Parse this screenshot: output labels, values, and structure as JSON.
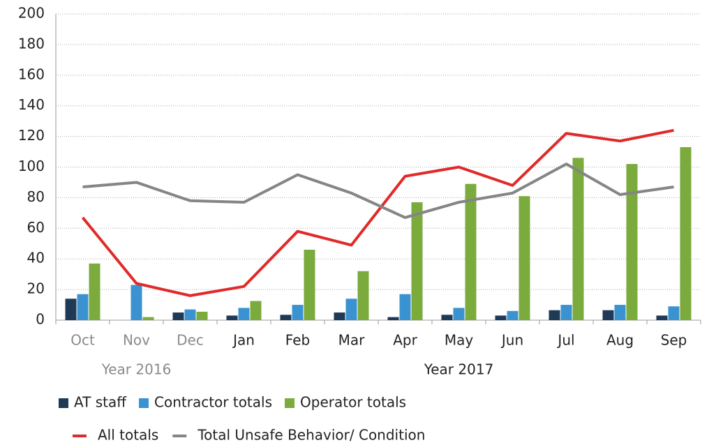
{
  "chart_data": {
    "type": "bar",
    "categories": [
      "Oct",
      "Nov",
      "Dec",
      "Jan",
      "Feb",
      "Mar",
      "Apr",
      "May",
      "Jun",
      "Jul",
      "Aug",
      "Sep"
    ],
    "category_colors": [
      "#8a8a8a",
      "#8a8a8a",
      "#8a8a8a",
      "#222222",
      "#222222",
      "#222222",
      "#222222",
      "#222222",
      "#222222",
      "#222222",
      "#222222",
      "#222222"
    ],
    "groups": [
      {
        "label": "Year 2016",
        "start": 0,
        "end": 2,
        "color": "#8a8a8a"
      },
      {
        "label": "Year 2017",
        "start": 3,
        "end": 11,
        "color": "#222222"
      }
    ],
    "series": [
      {
        "name": "AT staff",
        "type": "bar",
        "color": "#1f3a56",
        "values": [
          14,
          0,
          5,
          3,
          3.5,
          5,
          2,
          3.5,
          3,
          6.5,
          6.5,
          3
        ]
      },
      {
        "name": "Contractor totals",
        "type": "bar",
        "color": "#3a93d0",
        "values": [
          17,
          23,
          7,
          8,
          10,
          14,
          17,
          8,
          6,
          10,
          10,
          9
        ]
      },
      {
        "name": "Operator totals",
        "type": "bar",
        "color": "#7aab3c",
        "values": [
          37,
          2,
          5.5,
          12.5,
          46,
          32,
          77,
          89,
          81,
          106,
          102,
          113
        ]
      },
      {
        "name": "All totals",
        "type": "line",
        "color": "#e02a2a",
        "values": [
          67,
          24,
          16,
          22,
          58,
          49,
          94,
          100,
          88,
          122,
          117,
          124
        ]
      },
      {
        "name": "Total Unsafe Behavior/ Condition",
        "type": "line",
        "color": "#858585",
        "values": [
          87,
          90,
          78,
          77,
          95,
          83,
          67,
          77,
          83,
          102,
          82,
          87
        ]
      }
    ],
    "ylim": [
      0,
      200
    ],
    "yticks": [
      0,
      20,
      40,
      60,
      80,
      100,
      120,
      140,
      160,
      180,
      200
    ],
    "grid": true
  }
}
